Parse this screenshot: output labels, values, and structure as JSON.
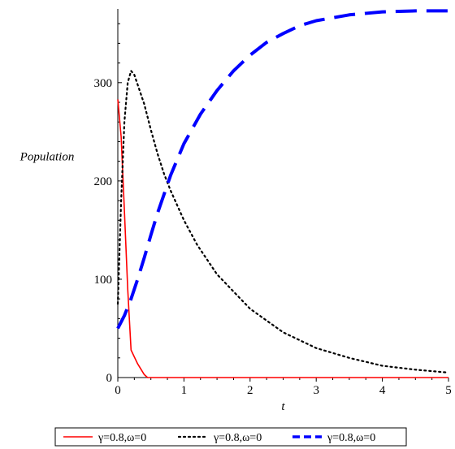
{
  "chart_data": {
    "type": "line",
    "title": "",
    "xlabel": "t",
    "ylabel": "Population",
    "xlim": [
      0,
      5
    ],
    "ylim": [
      0,
      375
    ],
    "xticks": [
      0,
      1,
      2,
      3,
      4,
      5
    ],
    "yticks": [
      0,
      100,
      200,
      300
    ],
    "grid": false,
    "legend_position": "bottom",
    "series": [
      {
        "name": "γ=0.8,ω=0",
        "color": "#ff0000",
        "style": "solid",
        "x": [
          0,
          0.05,
          0.1,
          0.15,
          0.2,
          0.3,
          0.4,
          0.45,
          0.5,
          1,
          2,
          3,
          4,
          5
        ],
        "y": [
          283,
          245,
          170,
          90,
          28,
          14,
          3,
          0,
          0,
          0,
          0,
          0,
          0,
          0
        ]
      },
      {
        "name": "γ=0.8,ω=0",
        "color": "#000000",
        "style": "dotted",
        "x": [
          0,
          0.05,
          0.1,
          0.15,
          0.2,
          0.25,
          0.3,
          0.4,
          0.5,
          0.6,
          0.7,
          0.8,
          1.0,
          1.2,
          1.5,
          2.0,
          2.5,
          3.0,
          3.5,
          4.0,
          4.5,
          5.0
        ],
        "y": [
          75,
          180,
          260,
          300,
          312,
          308,
          298,
          278,
          252,
          228,
          207,
          190,
          160,
          135,
          105,
          70,
          46,
          30,
          20,
          12,
          8,
          5
        ]
      },
      {
        "name": "γ=0.8,ω=0",
        "color": "#0000ff",
        "style": "dashed",
        "x": [
          0,
          0.1,
          0.2,
          0.3,
          0.4,
          0.5,
          0.6,
          0.8,
          1.0,
          1.25,
          1.5,
          1.75,
          2.0,
          2.25,
          2.5,
          2.75,
          3.0,
          3.5,
          4.0,
          4.5,
          5.0
        ],
        "y": [
          50,
          63,
          80,
          100,
          122,
          145,
          167,
          206,
          238,
          268,
          292,
          312,
          328,
          341,
          350,
          358,
          363,
          369,
          372,
          373,
          373
        ]
      }
    ]
  }
}
